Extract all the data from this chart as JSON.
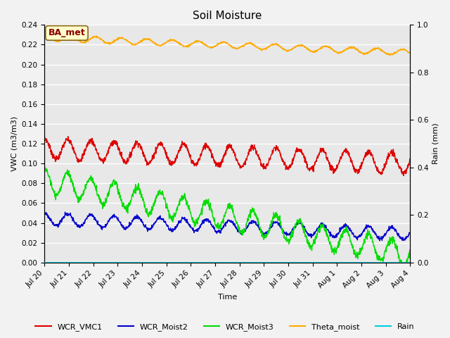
{
  "title": "Soil Moisture",
  "xlabel": "Time",
  "ylabel_left": "VWC (m3/m3)",
  "ylabel_right": "Rain (mm)",
  "annotation": "BA_met",
  "ylim_left": [
    0.0,
    0.24
  ],
  "ylim_right": [
    0.0,
    1.0
  ],
  "yticks_left": [
    0.0,
    0.02,
    0.04,
    0.06,
    0.08,
    0.1,
    0.12,
    0.14,
    0.16,
    0.18,
    0.2,
    0.22,
    0.24
  ],
  "yticks_right": [
    0.0,
    0.2,
    0.4,
    0.6,
    0.8,
    1.0
  ],
  "n_days": 15,
  "colors": {
    "WCR_VMC1": "#dd0000",
    "WCR_Moist2": "#0000cc",
    "WCR_Moist3": "#00dd00",
    "Theta_moist": "#ffaa00",
    "Rain": "#00ccdd"
  },
  "bg_color": "#e8e8e8",
  "grid_color": "#ffffff",
  "series": {
    "WCR_VMC1": {
      "base": 0.115,
      "amp": 0.01,
      "period": 0.95,
      "trend": -0.001
    },
    "WCR_Moist2": {
      "base": 0.044,
      "amp": 0.006,
      "period": 0.95,
      "trend": -0.001
    },
    "WCR_Moist3": {
      "base": 0.083,
      "amp": 0.012,
      "period": 0.95,
      "trend": -0.005
    },
    "Theta_moist": {
      "base": 0.227,
      "amp": 0.003,
      "period": 1.05,
      "trend": -0.001
    },
    "Rain": {
      "base": 0.0,
      "amp": 0.0,
      "period": 1.0,
      "trend": 0.0
    }
  },
  "xtick_labels": [
    "Jul 20",
    "Jul 21",
    "Jul 22",
    "Jul 23",
    "Jul 24",
    "Jul 25",
    "Jul 26",
    "Jul 27",
    "Jul 28",
    "Jul 29",
    "Jul 30",
    "Jul 31",
    "Aug 1",
    "Aug 2",
    "Aug 3",
    "Aug 4"
  ],
  "figsize": [
    6.4,
    4.8
  ],
  "dpi": 100,
  "title_fontsize": 11,
  "label_fontsize": 8,
  "tick_fontsize": 7.5,
  "legend_fontsize": 8
}
